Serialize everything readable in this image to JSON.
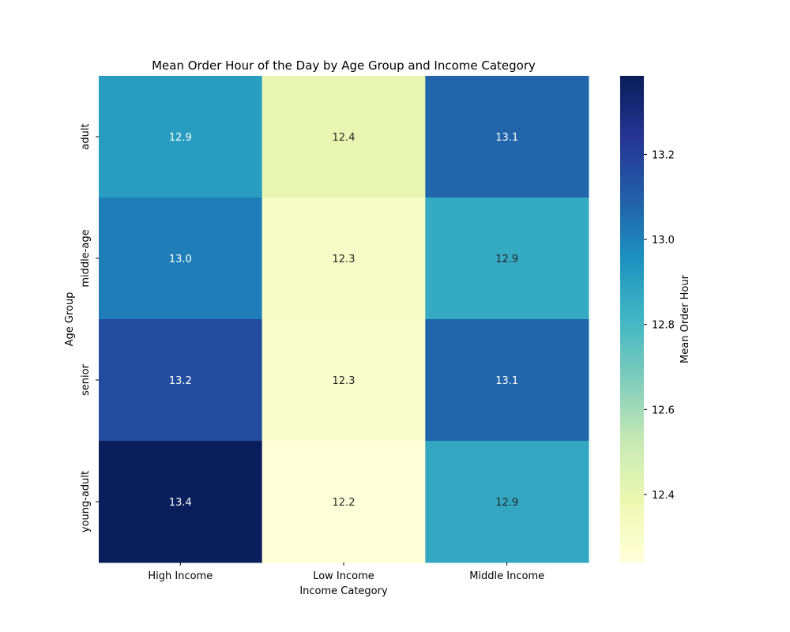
{
  "chart_data": {
    "type": "heatmap",
    "title": "Mean Order Hour of the Day by Age Group and Income Category",
    "xlabel": "Income Category",
    "ylabel": "Age Group",
    "x_categories": [
      "High Income",
      "Low Income",
      "Middle Income"
    ],
    "y_categories": [
      "adult",
      "middle-age",
      "senior",
      "young-adult"
    ],
    "values": [
      [
        12.91,
        12.4,
        13.08
      ],
      [
        13.01,
        12.31,
        12.86
      ],
      [
        13.16,
        12.29,
        13.08
      ],
      [
        13.38,
        12.24,
        12.87
      ]
    ],
    "annotations": [
      [
        "12.9",
        "12.4",
        "13.1"
      ],
      [
        "13.0",
        "12.3",
        "12.9"
      ],
      [
        "13.2",
        "12.3",
        "13.1"
      ],
      [
        "13.4",
        "12.2",
        "12.9"
      ]
    ],
    "colormap": "YlGnBu",
    "colormap_stops": [
      "#ffffd9",
      "#edf8b1",
      "#c7e9b4",
      "#7fcdbb",
      "#41b6c4",
      "#1d91c0",
      "#225ea8",
      "#253494",
      "#081d58"
    ],
    "colorbar": {
      "label": "Mean Order Hour",
      "range": [
        12.24,
        13.385
      ],
      "ticks": [
        12.4,
        12.6,
        12.8,
        13.0,
        13.2
      ],
      "tick_labels": [
        "12.4",
        "12.6",
        "12.8",
        "13.0",
        "13.2"
      ]
    }
  }
}
